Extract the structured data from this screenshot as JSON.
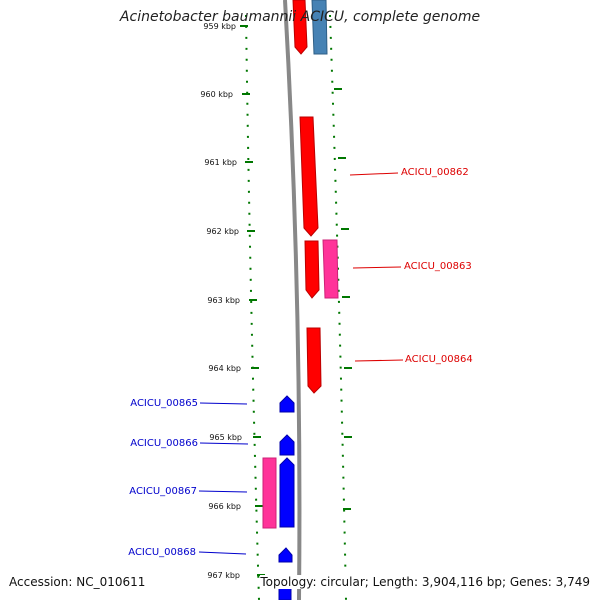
{
  "title": "Acinetobacter baumannii ACICU, complete genome",
  "accession": "Accession: NC_010611",
  "topology": "Topology: circular; Length: 3,904,116 bp; Genes: 3,749",
  "colors": {
    "plus_strand_gene": "#ff0000",
    "minus_strand_gene": "#0000ff",
    "rna_gene": "#ff3399",
    "other_feature": "#4682b4",
    "ruler_tick": "#007700",
    "backbone": "#888888"
  },
  "ruler": {
    "ticks": [
      {
        "label": "959 kbp"
      },
      {
        "label": "960 kbp"
      },
      {
        "label": "961 kbp"
      },
      {
        "label": "962 kbp"
      },
      {
        "label": "963 kbp"
      },
      {
        "label": "964 kbp"
      },
      {
        "label": "965 kbp"
      },
      {
        "label": "966 kbp"
      },
      {
        "label": "967 kbp"
      }
    ]
  },
  "genes": [
    {
      "id": "ACICU_00862",
      "strand": "plus",
      "color": "red"
    },
    {
      "id": "ACICU_00863",
      "strand": "plus",
      "color": "red"
    },
    {
      "id": "ACICU_00864",
      "strand": "plus",
      "color": "red"
    },
    {
      "id": "ACICU_00865",
      "strand": "minus",
      "color": "blue"
    },
    {
      "id": "ACICU_00866",
      "strand": "minus",
      "color": "blue"
    },
    {
      "id": "ACICU_00867",
      "strand": "minus",
      "color": "blue"
    },
    {
      "id": "ACICU_00868",
      "strand": "minus",
      "color": "blue"
    }
  ]
}
